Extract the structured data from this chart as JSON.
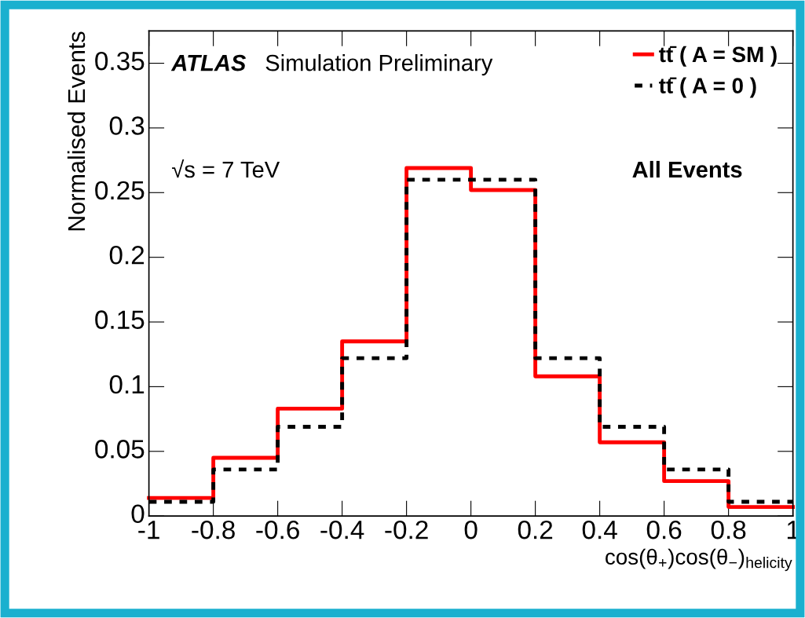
{
  "chart_data": {
    "type": "histogram",
    "ylabel": "Normalised Events",
    "xlabel": "cos(θ$_{+}$)cos(θ$_{−}$)$_{helicity}$",
    "bins": [
      -1,
      -0.8,
      -0.6,
      -0.4,
      -0.2,
      0,
      0.2,
      0.4,
      0.6,
      0.8,
      1
    ],
    "series": [
      {
        "name": "tt̄ ( A = SM )",
        "color": "#ff0000",
        "line_style": "solid",
        "values": [
          0.014,
          0.045,
          0.083,
          0.135,
          0.269,
          0.252,
          0.108,
          0.057,
          0.027,
          0.007
        ]
      },
      {
        "name": "tt̄ ( A = 0 )",
        "color": "#000000",
        "line_style": "dotted",
        "values": [
          0.011,
          0.036,
          0.069,
          0.122,
          0.26,
          0.26,
          0.122,
          0.069,
          0.036,
          0.011
        ]
      }
    ],
    "xlim": [
      -1,
      1
    ],
    "ylim": [
      0,
      0.375
    ],
    "xticks": [
      -1,
      -0.8,
      -0.6,
      -0.4,
      -0.2,
      0,
      0.2,
      0.4,
      0.6,
      0.8,
      1
    ],
    "yticks": [
      0,
      0.05,
      0.1,
      0.15,
      0.2,
      0.25,
      0.3,
      0.35
    ],
    "annotations": [
      "ATLAS",
      "Simulation Preliminary",
      "√s = 7 TeV",
      "All Events"
    ],
    "legend": "top right",
    "grid": false
  }
}
